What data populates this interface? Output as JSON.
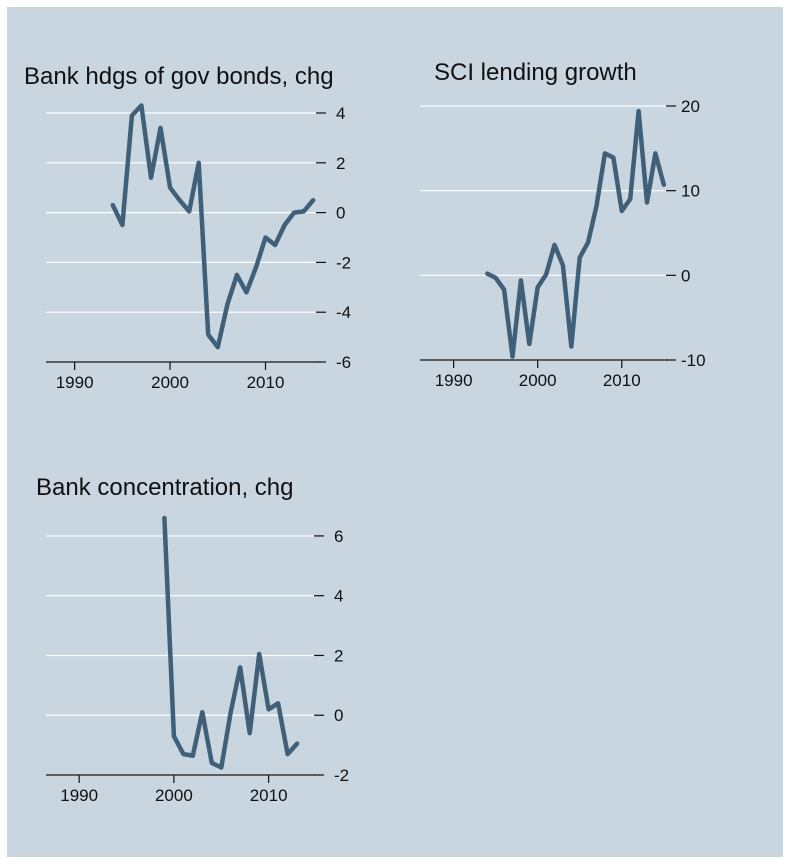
{
  "chart_data": [
    {
      "type": "line",
      "title": "Bank hdgs of gov bonds, chg",
      "xlabel": "",
      "ylabel": "",
      "xlim": [
        1987,
        2015.5
      ],
      "ylim": [
        -6,
        4
      ],
      "x_ticks": [
        1990,
        2000,
        2010
      ],
      "y_ticks": [
        4,
        2,
        0,
        -2,
        -4,
        -6
      ],
      "y_axis_side": "right",
      "grid": true,
      "series": [
        {
          "color": "#3f6078",
          "x": [
            1994,
            1995,
            1996,
            1997,
            1998,
            1999,
            2000,
            2001,
            2002,
            2003,
            2004,
            2005,
            2006,
            2007,
            2008,
            2009,
            2010,
            2011,
            2012,
            2013,
            2014,
            2015
          ],
          "y": [
            0.3,
            -0.5,
            3.9,
            4.3,
            1.4,
            3.4,
            1.0,
            0.5,
            0.05,
            2.0,
            -4.9,
            -5.4,
            -3.7,
            -2.5,
            -3.2,
            -2.2,
            -1.0,
            -1.3,
            -0.5,
            0.0,
            0.05,
            0.5
          ]
        }
      ]
    },
    {
      "type": "line",
      "title": "SCI lending growth",
      "xlabel": "",
      "ylabel": "",
      "xlim": [
        1986,
        2015.5
      ],
      "ylim": [
        -10,
        20
      ],
      "x_ticks": [
        1990,
        2000,
        2010
      ],
      "y_ticks": [
        20,
        10,
        0,
        -10
      ],
      "y_axis_side": "right",
      "grid": true,
      "series": [
        {
          "color": "#3f6078",
          "x": [
            1994,
            1995,
            1996,
            1997,
            1998,
            1999,
            2000,
            2001,
            2002,
            2003,
            2004,
            2005,
            2006,
            2007,
            2008,
            2009,
            2010,
            2011,
            2012,
            2013,
            2014,
            2015
          ],
          "y": [
            0.2,
            -0.3,
            -1.7,
            -9.6,
            -0.6,
            -8.1,
            -1.4,
            0.1,
            3.6,
            1.2,
            -8.4,
            2.1,
            3.9,
            8.2,
            14.4,
            13.9,
            7.6,
            9.0,
            19.4,
            8.6,
            14.4,
            10.7
          ]
        }
      ]
    },
    {
      "type": "line",
      "title": "Bank concentration, chg",
      "xlabel": "",
      "ylabel": "",
      "xlim": [
        1986.5,
        2015
      ],
      "ylim": [
        -2,
        6.6
      ],
      "x_ticks": [
        1990,
        2000,
        2010
      ],
      "y_ticks": [
        6,
        4,
        2,
        0,
        -2
      ],
      "y_axis_side": "right",
      "grid": true,
      "series": [
        {
          "color": "#3f6078",
          "x": [
            1999,
            2000,
            2001,
            2002,
            2003,
            2004,
            2005,
            2006,
            2007,
            2008,
            2009,
            2010,
            2011,
            2012,
            2013
          ],
          "y": [
            6.6,
            -0.7,
            -1.3,
            -1.35,
            0.1,
            -1.6,
            -1.75,
            0.1,
            1.6,
            -0.6,
            2.05,
            0.2,
            0.4,
            -1.3,
            -0.95
          ]
        }
      ]
    }
  ]
}
